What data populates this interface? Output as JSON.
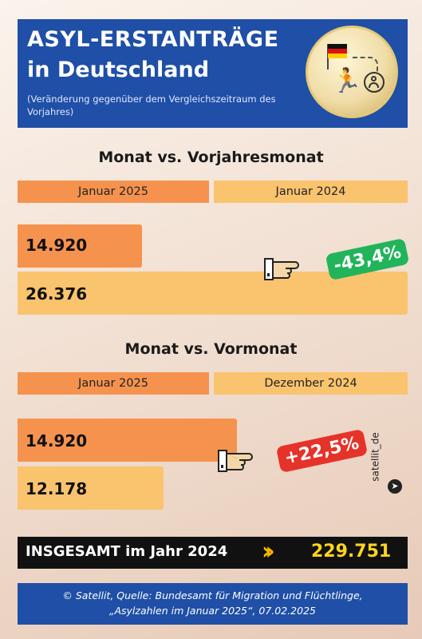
{
  "header": {
    "title_line1": "ASYL-ERSTANTRÄGE",
    "title_line2": "in Deutschland",
    "subtitle": "(Veränderung gegenüber dem Vergleichszeitraum des Vorjahres)"
  },
  "colors": {
    "current": "#f5934e",
    "previous": "#fac36e",
    "header": "#1f4fa6",
    "increase": "#e5332a",
    "decrease": "#22b45a",
    "total_value": "#ffd51c"
  },
  "chart_data": [
    {
      "type": "bar",
      "title": "Monat vs. Vorjahresmonat",
      "categories": [
        "Januar 2025",
        "Januar 2024"
      ],
      "values": [
        14920,
        26376
      ],
      "value_labels": [
        "14.920",
        "26.376"
      ],
      "change_label": "-43,4%"
    },
    {
      "type": "bar",
      "title": "Monat vs. Vormonat",
      "categories": [
        "Januar 2025",
        "Dezember 2024"
      ],
      "values": [
        14920,
        12178
      ],
      "value_labels": [
        "14.920",
        "12.178"
      ],
      "change_label": "+22,5%"
    }
  ],
  "total": {
    "label": "INSGESAMT im Jahr 2024",
    "value": "229.751"
  },
  "footer": {
    "line1": "© Satellit, Quelle: Bundesamt für Migration und Flüchtlinge,",
    "line2": "„Asylzahlen im Januar 2025“, 07.02.2025"
  },
  "credit": {
    "text": "satellit_de",
    "icon": "send-icon"
  }
}
